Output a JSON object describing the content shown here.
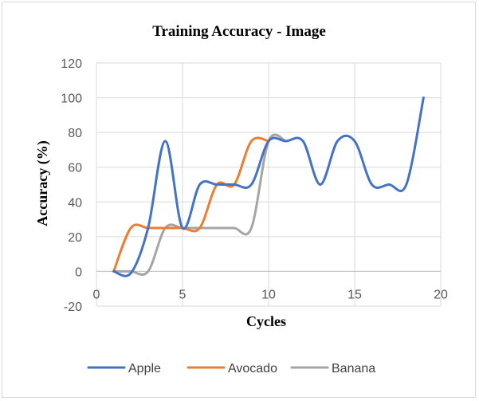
{
  "chart_data": {
    "type": "line",
    "title": "Training Accuracy  - Image",
    "xlabel": "Cycles",
    "ylabel": "Accuracy (%)",
    "xlim": [
      0,
      20
    ],
    "ylim": [
      -20,
      120
    ],
    "xticks": [
      "0",
      "5",
      "10",
      "15",
      "20"
    ],
    "yticks": [
      "-20",
      "0",
      "20",
      "40",
      "60",
      "80",
      "100",
      "120"
    ],
    "xtick_values": [
      0,
      5,
      10,
      15,
      20
    ],
    "ytick_values": [
      -20,
      0,
      20,
      40,
      60,
      80,
      100,
      120
    ],
    "grid": true,
    "smooth": true,
    "legend_position": "bottom",
    "series": [
      {
        "name": "Apple",
        "color": "#4472C4",
        "x": [
          1,
          2,
          3,
          4,
          5,
          6,
          7,
          8,
          9,
          10,
          11,
          12,
          13,
          14,
          15,
          16,
          17,
          18,
          19
        ],
        "y": [
          0,
          -1,
          25,
          75,
          25,
          50,
          50,
          50,
          50,
          75,
          75,
          75,
          50,
          75,
          75,
          50,
          50,
          50,
          100
        ]
      },
      {
        "name": "Avocado",
        "color": "#ED7D31",
        "x": [
          1,
          2,
          3,
          4,
          5,
          6,
          7,
          8,
          9,
          10
        ],
        "y": [
          0,
          25,
          25,
          25,
          25,
          25,
          50,
          50,
          75,
          75
        ]
      },
      {
        "name": "Banana",
        "color": "#A5A5A5",
        "x": [
          1,
          2,
          3,
          4,
          5,
          6,
          7,
          8,
          9,
          10,
          11
        ],
        "y": [
          0,
          0,
          0,
          25,
          25,
          25,
          25,
          25,
          25,
          75,
          75
        ]
      }
    ]
  }
}
